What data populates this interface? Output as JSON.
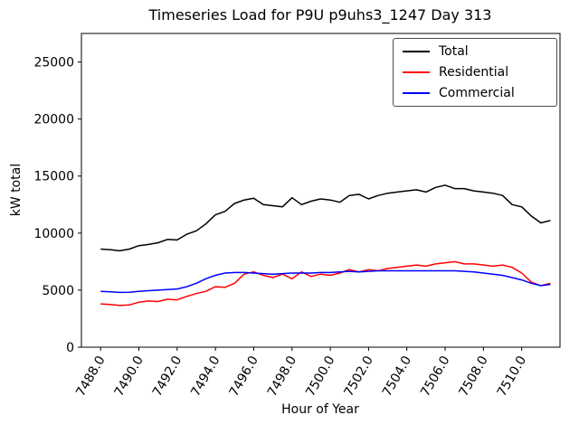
{
  "chart_data": {
    "type": "line",
    "title": "Timeseries Load for P9U p9uhs3_1247  Day 313",
    "xlabel": "Hour of Year",
    "ylabel": "kW total",
    "xlim": [
      7487.0,
      7512.0
    ],
    "ylim": [
      0,
      27500
    ],
    "grid": false,
    "legend_position": "upper right",
    "xticks": [
      7488,
      7490,
      7492,
      7494,
      7496,
      7498,
      7500,
      7502,
      7504,
      7506,
      7508,
      7510
    ],
    "xtick_labels": [
      "7488.0",
      "7490.0",
      "7492.0",
      "7494.0",
      "7496.0",
      "7498.0",
      "7500.0",
      "7502.0",
      "7504.0",
      "7506.0",
      "7508.0",
      "7510.0"
    ],
    "yticks": [
      0,
      5000,
      10000,
      15000,
      20000,
      25000
    ],
    "ytick_labels": [
      "0",
      "5000",
      "10000",
      "15000",
      "20000",
      "25000"
    ],
    "x": [
      7488.0,
      7488.5,
      7489.0,
      7489.5,
      7490.0,
      7490.5,
      7491.0,
      7491.5,
      7492.0,
      7492.5,
      7493.0,
      7493.5,
      7494.0,
      7494.5,
      7495.0,
      7495.5,
      7496.0,
      7496.5,
      7497.0,
      7497.5,
      7498.0,
      7498.5,
      7499.0,
      7499.5,
      7500.0,
      7500.5,
      7501.0,
      7501.5,
      7502.0,
      7502.5,
      7503.0,
      7503.5,
      7504.0,
      7504.5,
      7505.0,
      7505.5,
      7506.0,
      7506.5,
      7507.0,
      7507.5,
      7508.0,
      7508.5,
      7509.0,
      7509.5,
      7510.0,
      7510.5,
      7511.0,
      7511.5
    ],
    "series": [
      {
        "name": "Total",
        "color": "#000000",
        "values": [
          8600,
          8550,
          8450,
          8600,
          8900,
          9000,
          9150,
          9450,
          9400,
          9900,
          10200,
          10800,
          11600,
          11900,
          12600,
          12900,
          13050,
          12500,
          12400,
          12300,
          13100,
          12500,
          12800,
          13000,
          12900,
          12700,
          13300,
          13400,
          13000,
          13300,
          13500,
          13600,
          13700,
          13800,
          13600,
          14000,
          14200,
          13900,
          13900,
          13700,
          13600,
          13500,
          13300,
          12500,
          12300,
          11500,
          10900,
          11100
        ]
      },
      {
        "name": "Residential",
        "color": "#ff0000",
        "values": [
          3800,
          3750,
          3650,
          3700,
          3950,
          4050,
          4000,
          4200,
          4150,
          4450,
          4700,
          4900,
          5300,
          5250,
          5600,
          6400,
          6600,
          6300,
          6100,
          6400,
          6000,
          6600,
          6200,
          6400,
          6300,
          6500,
          6800,
          6600,
          6800,
          6700,
          6900,
          7000,
          7100,
          7200,
          7100,
          7300,
          7400,
          7500,
          7300,
          7300,
          7200,
          7100,
          7200,
          7000,
          6500,
          5700,
          5400,
          5600
        ]
      },
      {
        "name": "Commercial",
        "color": "#0000ff",
        "values": [
          4900,
          4850,
          4800,
          4820,
          4900,
          4950,
          5000,
          5050,
          5100,
          5300,
          5600,
          6000,
          6300,
          6500,
          6550,
          6550,
          6500,
          6450,
          6400,
          6450,
          6500,
          6500,
          6500,
          6550,
          6550,
          6600,
          6650,
          6600,
          6650,
          6700,
          6700,
          6700,
          6700,
          6700,
          6700,
          6700,
          6700,
          6700,
          6650,
          6600,
          6500,
          6400,
          6300,
          6100,
          5900,
          5600,
          5400,
          5500
        ]
      }
    ]
  }
}
